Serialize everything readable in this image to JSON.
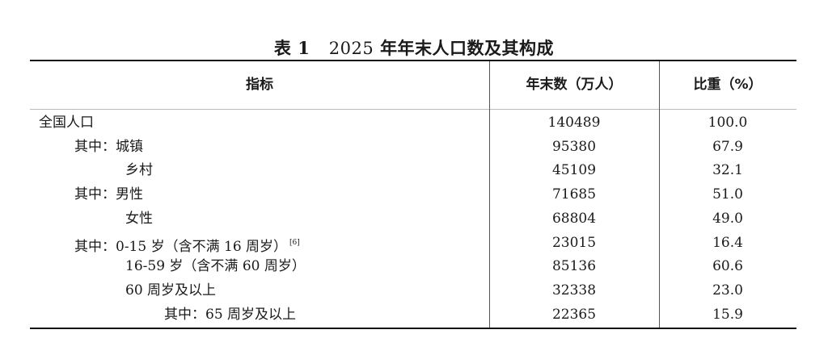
{
  "title": {
    "prefix": "表 1",
    "year": "2025",
    "text": "年年末人口数及其构成"
  },
  "headers": [
    "指标",
    "年末数（万人）",
    "比重（%）"
  ],
  "rows": [
    {
      "label": "全国人口",
      "level": 0,
      "count": "140489",
      "share": "100.0"
    },
    {
      "label": "其中：城镇",
      "level": 1,
      "count": "95380",
      "share": "67.9"
    },
    {
      "label": "乡村",
      "level": 2,
      "count": "45109",
      "share": "32.1"
    },
    {
      "label": "其中：男性",
      "level": 1,
      "count": "71685",
      "share": "51.0"
    },
    {
      "label": "女性",
      "level": 2,
      "count": "68804",
      "share": "49.0"
    },
    {
      "label": "其中：0-15 岁（含不满 16 周岁）",
      "note": "[6]",
      "level": 1,
      "count": "23015",
      "share": "16.4"
    },
    {
      "label": "16-59 岁（含不满 60 周岁）",
      "level": 2,
      "count": "85136",
      "share": "60.6"
    },
    {
      "label": "60 周岁及以上",
      "level": 2,
      "count": "32338",
      "share": "23.0"
    },
    {
      "label": "其中：65 周岁及以上",
      "level": 3,
      "count": "22365",
      "share": "15.9"
    }
  ]
}
